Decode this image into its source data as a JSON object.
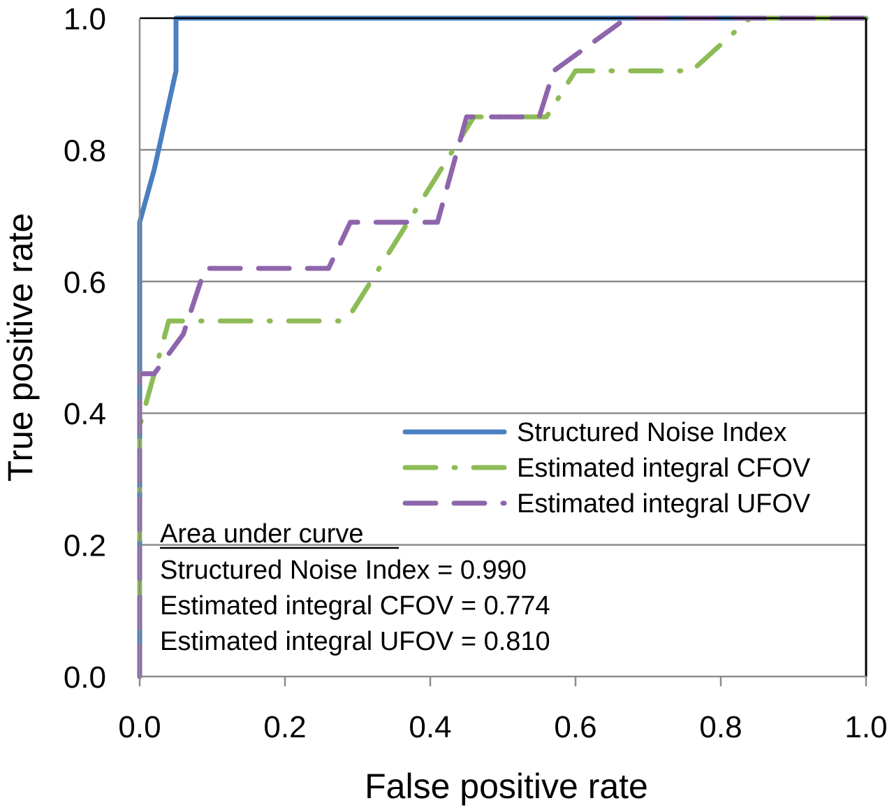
{
  "chart_data": {
    "type": "line",
    "xlabel": "False positive rate",
    "ylabel": "True positive rate",
    "xlim": [
      0,
      1
    ],
    "ylim": [
      0,
      1
    ],
    "x_ticks": [
      "0.0",
      "0.2",
      "0.4",
      "0.6",
      "0.8",
      "1.0"
    ],
    "y_ticks": [
      "0.0",
      "0.2",
      "0.4",
      "0.6",
      "0.8",
      "1.0"
    ],
    "grid": "horizontal",
    "legend_position": "lower-right",
    "series": [
      {
        "name": "Structured Noise Index",
        "color": "#4a7fc1",
        "style": "solid",
        "x": [
          0.0,
          0.0,
          0.02,
          0.05,
          0.05,
          1.0
        ],
        "y": [
          0.0,
          0.69,
          0.77,
          0.92,
          1.0,
          1.0
        ]
      },
      {
        "name": "Estimated integral CFOV",
        "color": "#8dbb55",
        "style": "dash-dot",
        "x": [
          0.0,
          0.0,
          0.04,
          0.28,
          0.29,
          0.46,
          0.56,
          0.6,
          0.76,
          0.84,
          1.0
        ],
        "y": [
          0.0,
          0.38,
          0.54,
          0.54,
          0.55,
          0.85,
          0.85,
          0.92,
          0.92,
          1.0,
          1.0
        ]
      },
      {
        "name": "Estimated integral UFOV",
        "color": "#8e65ab",
        "style": "dashed",
        "x": [
          0.0,
          0.0,
          0.02,
          0.06,
          0.09,
          0.26,
          0.29,
          0.41,
          0.45,
          0.55,
          0.57,
          0.67,
          1.0
        ],
        "y": [
          0.0,
          0.46,
          0.46,
          0.52,
          0.62,
          0.62,
          0.69,
          0.69,
          0.85,
          0.85,
          0.92,
          1.0,
          1.0
        ]
      }
    ],
    "annotation": {
      "heading": "Area under curve",
      "lines": [
        "Structured Noise Index = 0.990",
        "Estimated integral CFOV = 0.774",
        "Estimated integral UFOV = 0.810"
      ]
    }
  }
}
